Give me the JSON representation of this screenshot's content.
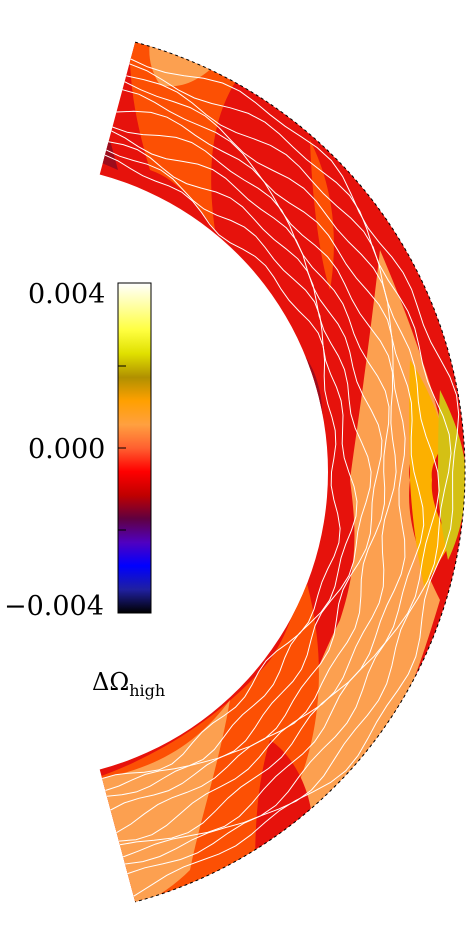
{
  "colorbar": {
    "ticks": [
      "0.004",
      "0.000",
      "−0.004"
    ],
    "label_main": "ΔΩ",
    "label_sub": "high",
    "colors": [
      "#000000",
      "#2020a0",
      "#0000ff",
      "#5000c0",
      "#600040",
      "#c00000",
      "#ff0000",
      "#ff6030",
      "#ffa040",
      "#ffa000",
      "#b09000",
      "#e0e000",
      "#ffff40",
      "#ffffa0",
      "#ffffff"
    ]
  },
  "shell": {
    "palette": {
      "dark_red": "#9c0c1c",
      "red": "#e6120c",
      "red_orange": "#fc5004",
      "orange": "#fca050",
      "light_orange": "#fcb060",
      "amber": "#fcb000",
      "olive": "#d4c014",
      "contour": "#ffffff"
    }
  }
}
